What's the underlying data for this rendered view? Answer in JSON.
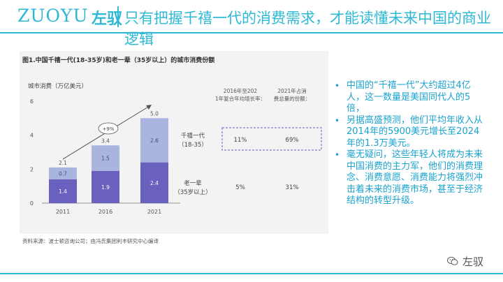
{
  "header": {
    "logo_latin": "ZUOYU",
    "logo_cn": "左驭",
    "title": "只有把握千禧一代的消费需求，才能读懂未来中国的商业逻辑"
  },
  "figure": {
    "title": "图1.中国千禧一代(18-35岁)和老一辈（35岁以上）的城市消费份额",
    "source": "资料来源：波士顿咨询公司；由冯氏集团利丰研究中心编译"
  },
  "chart_data": {
    "type": "bar",
    "ylabel": "城市消费（万亿美元）",
    "ylim": [
      0,
      6
    ],
    "yticks": [
      0,
      2,
      4,
      6
    ],
    "categories": [
      "2011",
      "2016",
      "2021"
    ],
    "series": [
      {
        "name": "老一辈",
        "values": [
          1.4,
          1.9,
          2.4
        ],
        "color": "#6a60bd"
      },
      {
        "name": "千禧一代",
        "values": [
          0.7,
          1.5,
          2.6
        ],
        "color": "#a9b4df"
      }
    ],
    "totals": [
      2.1,
      3.4,
      5.0
    ],
    "total_labels": [
      "2.1",
      "3.4",
      "5.0"
    ],
    "value_labels": [
      [
        "1.4",
        "0.7"
      ],
      [
        "1.9",
        "1.5"
      ],
      [
        "2.4",
        "2.6"
      ]
    ],
    "growth_label": "+9%",
    "table": {
      "col_headers": [
        "2016年至2021年复合年均增长率：",
        "2021年占消费总量的份额："
      ],
      "rows": [
        {
          "label_line1": "千禧一代",
          "label_line2": "（18-35）",
          "cagr": "11%",
          "share": "69%"
        },
        {
          "label_line1": "老一辈",
          "label_line2": "（35岁以上）",
          "cagr": "5%",
          "share": "31%"
        }
      ]
    }
  },
  "bullets": [
    "中国的“千禧一代”大约超过4亿人，这一数量是美国同代人的5倍，",
    "另据高盛预测，他们平均年收入从2014年的5900美元增长至2024年的1.3万美元。",
    "毫无疑问，这些年轻人将成为未来中国消费的主力军，他们的消费理念、消费意愿、消费能力将强烈冲击着未来的消费市场，甚至于经济结构的转型升级。"
  ],
  "footer": {
    "brand": "左驭",
    "icon": "wechat-icon"
  },
  "colors": {
    "accent": "#2eb8d6",
    "bullet_text": "#1aa2cf"
  }
}
